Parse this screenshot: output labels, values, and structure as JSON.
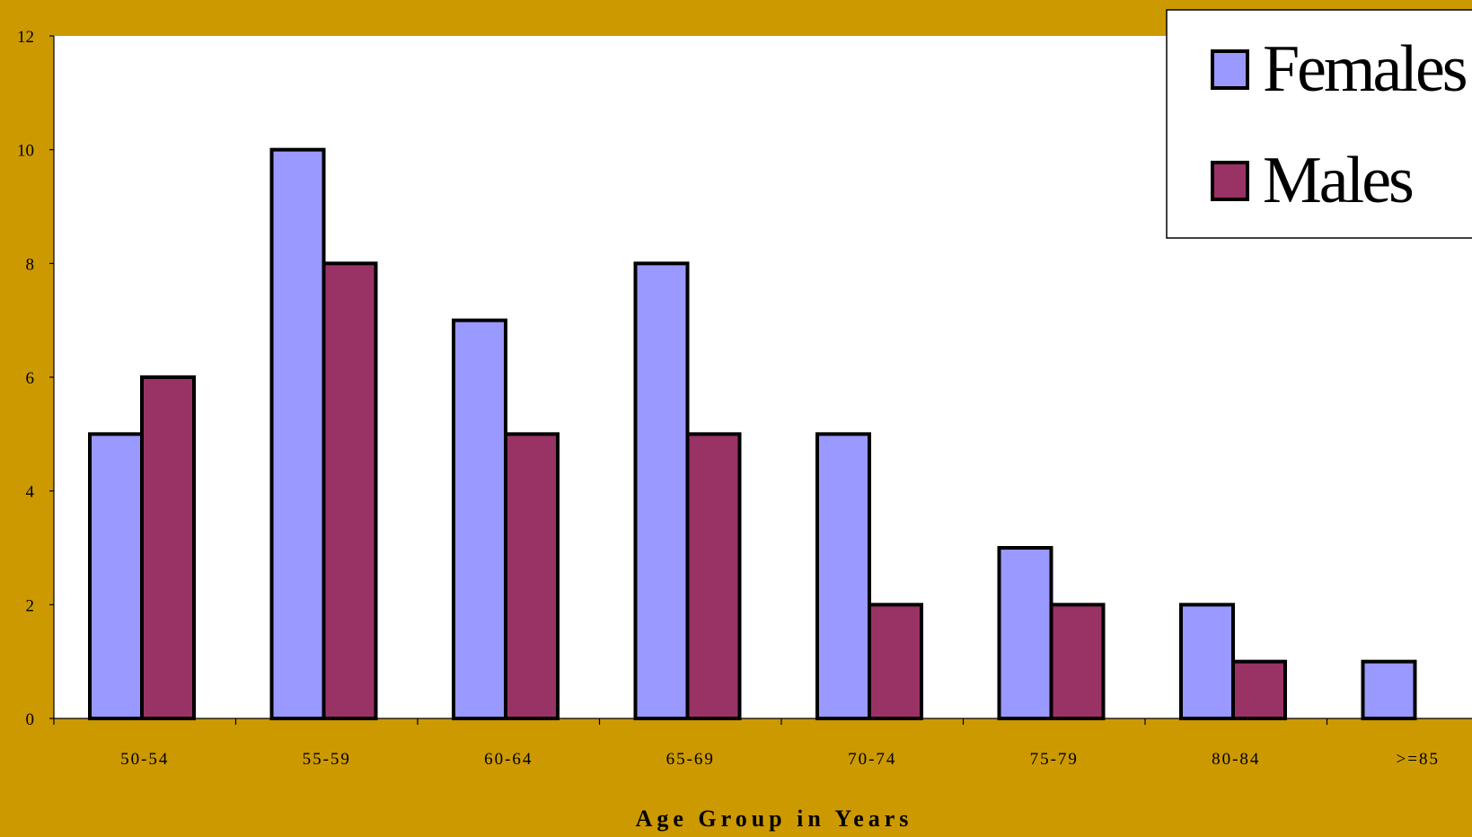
{
  "chart_data": {
    "type": "bar",
    "title": "",
    "xlabel": "Age Group in Years",
    "ylabel": "",
    "categories": [
      "50-54",
      "55-59",
      "60-64",
      "65-69",
      "70-74",
      "75-79",
      "80-84",
      ">=85"
    ],
    "series": [
      {
        "name": "Females",
        "color": "#9999FF",
        "values": [
          5,
          10,
          7,
          8,
          5,
          3,
          2,
          1
        ]
      },
      {
        "name": "Males",
        "color": "#993366",
        "values": [
          6,
          8,
          5,
          5,
          2,
          2,
          1,
          0
        ]
      }
    ],
    "ylim": [
      0,
      12
    ],
    "yticks": [
      0,
      2,
      4,
      6,
      8,
      10,
      12
    ],
    "grid": false,
    "legend_position": "top-right",
    "background_color": "#CC9900",
    "plot_area_color": "#FFFFFF"
  }
}
